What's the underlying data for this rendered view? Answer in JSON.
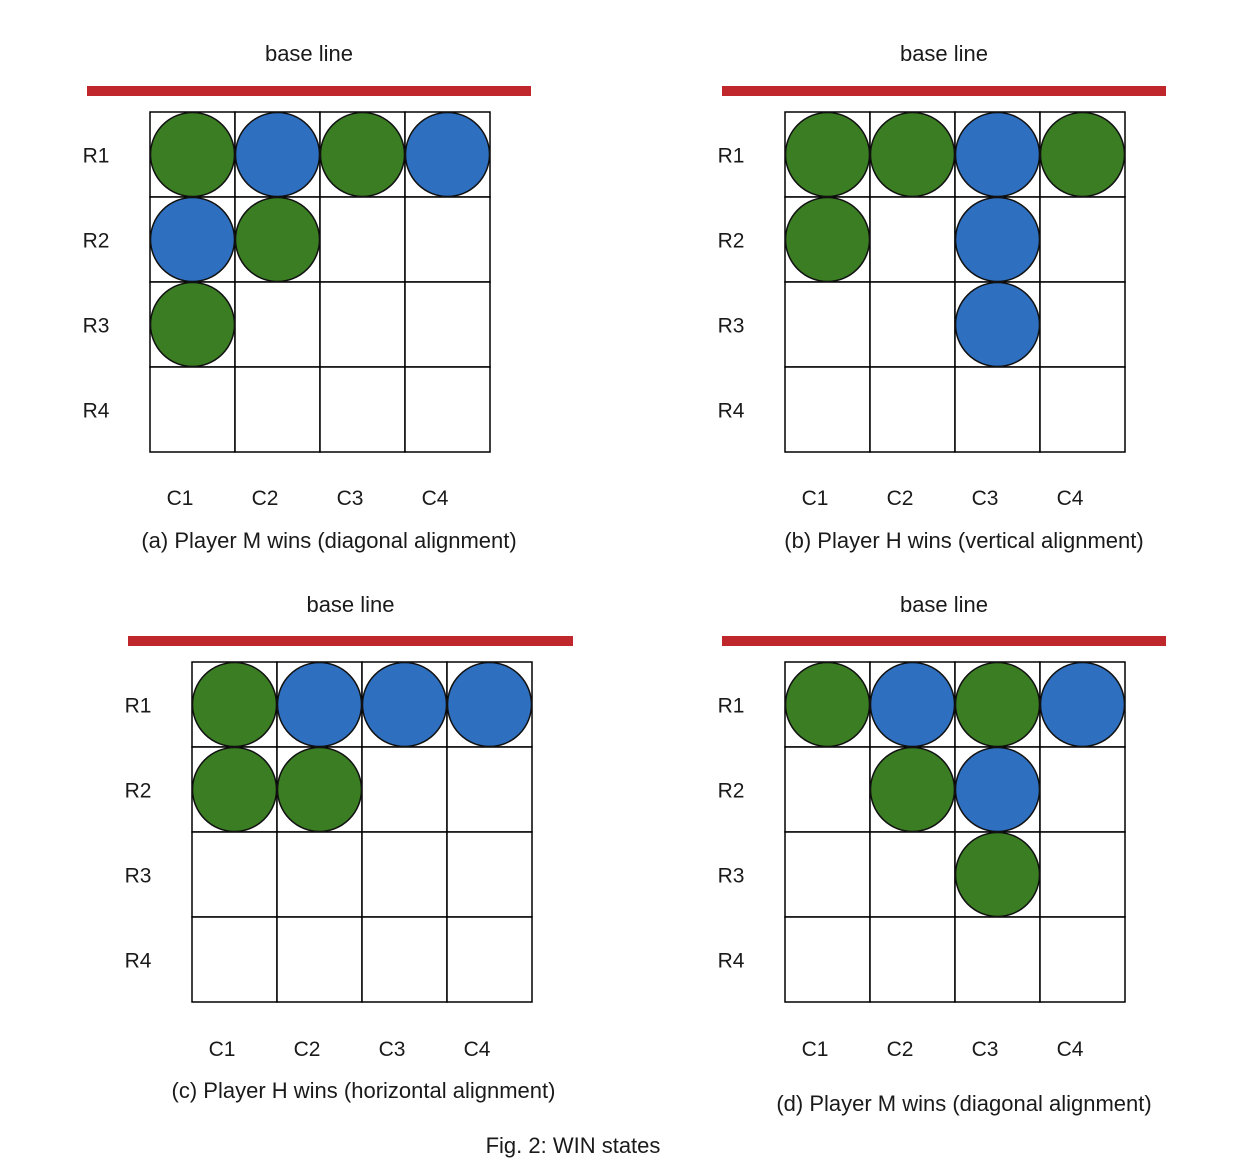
{
  "figure_caption": "Fig. 2: WIN states",
  "colors": {
    "base_line": "#c0272d",
    "green_piece": "#3a7d22",
    "blue_piece": "#2e6fbf",
    "grid_line": "#000000"
  },
  "panels": [
    {
      "id": "a",
      "base_line_label": "base line",
      "caption": "(a) Player M wins (diagonal alignment)",
      "row_labels": [
        "R1",
        "R2",
        "R3",
        "R4"
      ],
      "col_labels": [
        "C1",
        "C2",
        "C3",
        "C4"
      ],
      "pieces": [
        {
          "row": 1,
          "col": 1,
          "color": "green"
        },
        {
          "row": 1,
          "col": 2,
          "color": "blue"
        },
        {
          "row": 1,
          "col": 3,
          "color": "green"
        },
        {
          "row": 1,
          "col": 4,
          "color": "blue"
        },
        {
          "row": 2,
          "col": 1,
          "color": "blue"
        },
        {
          "row": 2,
          "col": 2,
          "color": "green"
        },
        {
          "row": 3,
          "col": 1,
          "color": "green"
        }
      ]
    },
    {
      "id": "b",
      "base_line_label": "base line",
      "caption": "(b) Player H wins (vertical alignment)",
      "row_labels": [
        "R1",
        "R2",
        "R3",
        "R4"
      ],
      "col_labels": [
        "C1",
        "C2",
        "C3",
        "C4"
      ],
      "pieces": [
        {
          "row": 1,
          "col": 1,
          "color": "green"
        },
        {
          "row": 1,
          "col": 2,
          "color": "green"
        },
        {
          "row": 1,
          "col": 3,
          "color": "blue"
        },
        {
          "row": 1,
          "col": 4,
          "color": "green"
        },
        {
          "row": 2,
          "col": 1,
          "color": "green"
        },
        {
          "row": 2,
          "col": 3,
          "color": "blue"
        },
        {
          "row": 3,
          "col": 3,
          "color": "blue"
        }
      ]
    },
    {
      "id": "c",
      "base_line_label": "base line",
      "caption": "(c) Player H wins (horizontal alignment)",
      "row_labels": [
        "R1",
        "R2",
        "R3",
        "R4"
      ],
      "col_labels": [
        "C1",
        "C2",
        "C3",
        "C4"
      ],
      "pieces": [
        {
          "row": 1,
          "col": 1,
          "color": "green"
        },
        {
          "row": 1,
          "col": 2,
          "color": "blue"
        },
        {
          "row": 1,
          "col": 3,
          "color": "blue"
        },
        {
          "row": 1,
          "col": 4,
          "color": "blue"
        },
        {
          "row": 2,
          "col": 1,
          "color": "green"
        },
        {
          "row": 2,
          "col": 2,
          "color": "green"
        }
      ]
    },
    {
      "id": "d",
      "base_line_label": "base line",
      "caption": "(d) Player M wins (diagonal alignment)",
      "row_labels": [
        "R1",
        "R2",
        "R3",
        "R4"
      ],
      "col_labels": [
        "C1",
        "C2",
        "C3",
        "C4"
      ],
      "pieces": [
        {
          "row": 1,
          "col": 1,
          "color": "green"
        },
        {
          "row": 1,
          "col": 2,
          "color": "blue"
        },
        {
          "row": 1,
          "col": 3,
          "color": "green"
        },
        {
          "row": 1,
          "col": 4,
          "color": "blue"
        },
        {
          "row": 2,
          "col": 2,
          "color": "green"
        },
        {
          "row": 2,
          "col": 3,
          "color": "blue"
        },
        {
          "row": 3,
          "col": 3,
          "color": "green"
        }
      ]
    }
  ]
}
